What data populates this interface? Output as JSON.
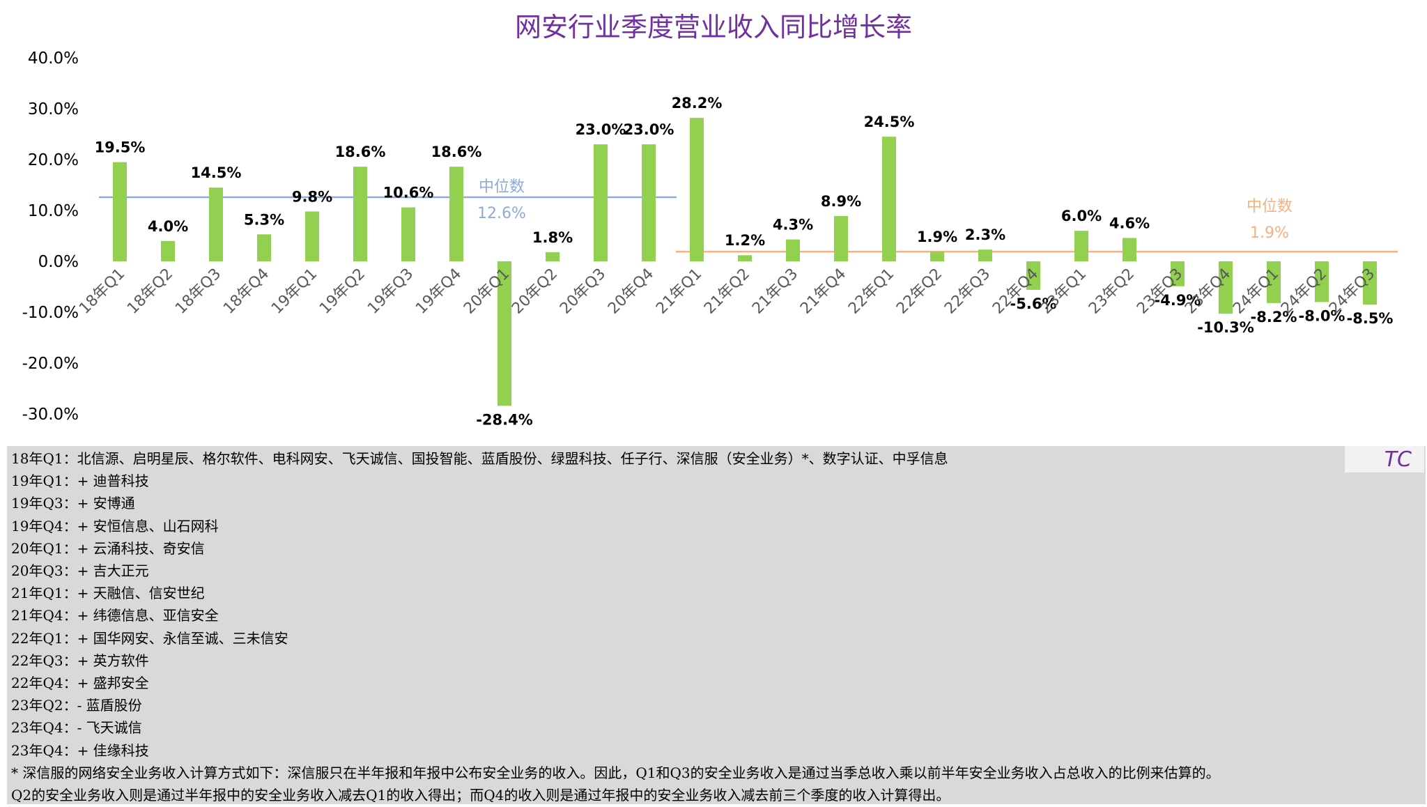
{
  "chart_data": {
    "type": "bar",
    "title": "网安行业季度营业收入同比增长率",
    "categories": [
      "18年Q1",
      "18年Q2",
      "18年Q3",
      "18年Q4",
      "19年Q1",
      "19年Q2",
      "19年Q3",
      "19年Q4",
      "20年Q1",
      "20年Q2",
      "20年Q3",
      "20年Q4",
      "21年Q1",
      "21年Q2",
      "21年Q3",
      "21年Q4",
      "22年Q1",
      "22年Q2",
      "22年Q3",
      "22年Q4",
      "23年Q1",
      "23年Q2",
      "23年Q3",
      "23年Q4",
      "24年Q1",
      "24年Q2",
      "24年Q3"
    ],
    "values": [
      19.5,
      4.0,
      14.5,
      5.3,
      9.8,
      18.6,
      10.6,
      18.6,
      -28.4,
      1.8,
      23.0,
      23.0,
      28.2,
      1.2,
      4.3,
      8.9,
      24.5,
      1.9,
      2.3,
      -5.6,
      6.0,
      4.6,
      -4.9,
      -10.3,
      -8.2,
      -8.0,
      -8.5
    ],
    "value_labels": [
      "19.5%",
      "4.0%",
      "14.5%",
      "5.3%",
      "9.8%",
      "18.6%",
      "10.6%",
      "18.6%",
      "-28.4%",
      "1.8%",
      "23.0%",
      "23.0%",
      "28.2%",
      "1.2%",
      "4.3%",
      "8.9%",
      "24.5%",
      "1.9%",
      "2.3%",
      "-5.6%",
      "6.0%",
      "4.6%",
      "-4.9%",
      "-10.3%",
      "-8.2%",
      "-8.0%",
      "-8.5%"
    ],
    "ylim": [
      -30,
      40
    ],
    "yticks": [
      40,
      30,
      20,
      10,
      0,
      -10,
      -20,
      -30
    ],
    "ytick_labels": [
      "40.0%",
      "30.0%",
      "20.0%",
      "10.0%",
      "0.0%",
      "-10.0%",
      "-20.0%",
      "-30.0%"
    ],
    "bar_color": "#92d050",
    "grid": false,
    "medians": [
      {
        "label": "中位数",
        "value_label": "12.6%",
        "value": 12.6,
        "from": 0,
        "to": 11,
        "color": "#8eaadb"
      },
      {
        "label": "中位数",
        "value_label": "1.9%",
        "value": 1.9,
        "from": 12,
        "to": 26,
        "color": "#f4b183"
      }
    ]
  },
  "colors": {
    "title": "#7030a0",
    "notes_bg": "#d9d9d9",
    "tc": "#7030a0"
  },
  "tc_mark": "TC",
  "notes": [
    "18年Q1：北信源、启明星辰、格尔软件、电科网安、飞天诚信、国投智能、蓝盾股份、绿盟科技、任子行、深信服（安全业务）*、数字认证、中孚信息",
    "19年Q1：+ 迪普科技",
    "19年Q3：+ 安博通",
    "19年Q4：+ 安恒信息、山石网科",
    "20年Q1：+ 云涌科技、奇安信",
    "20年Q3：+ 吉大正元",
    "21年Q1：+ 天融信、信安世纪",
    "21年Q4：+ 纬德信息、亚信安全",
    "22年Q1：+ 国华网安、永信至诚、三未信安",
    "22年Q3：+ 英方软件",
    "22年Q4：+ 盛邦安全",
    "23年Q2：- 蓝盾股份",
    "23年Q4：- 飞天诚信",
    "23年Q4：+ 佳缘科技",
    "* 深信服的网络安全业务收入计算方式如下：深信服只在半年报和年报中公布安全业务的收入。因此，Q1和Q3的安全业务收入是通过当季总收入乘以前半年安全业务收入占总收入的比例来估算的。",
    "  Q2的安全业务收入则是通过半年报中的安全业务收入减去Q1的收入得出；而Q4的收入则是通过年报中的安全业务收入减去前三个季度的收入计算得出。"
  ]
}
